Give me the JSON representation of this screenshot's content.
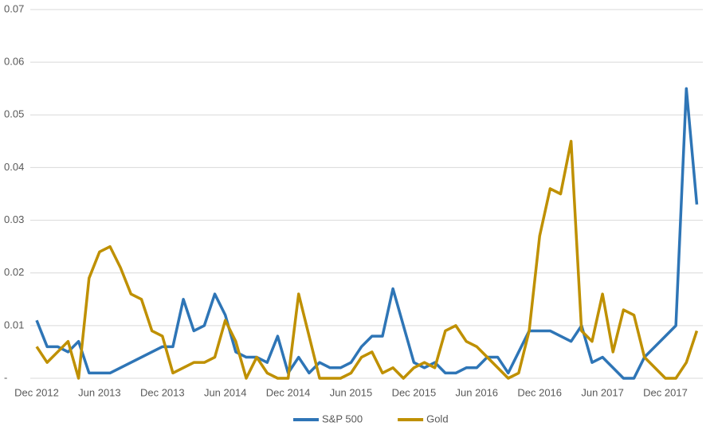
{
  "chart_data": {
    "type": "line",
    "categories": [
      "Dec 2012",
      null,
      null,
      null,
      null,
      null,
      "Jun 2013",
      null,
      null,
      null,
      null,
      null,
      "Dec 2013",
      null,
      null,
      null,
      null,
      null,
      "Jun 2014",
      null,
      null,
      null,
      null,
      null,
      "Dec 2014",
      null,
      null,
      null,
      null,
      null,
      "Jun 2015",
      null,
      null,
      null,
      null,
      null,
      "Dec 2015",
      null,
      null,
      null,
      null,
      null,
      "Jun 2016",
      null,
      null,
      null,
      null,
      null,
      "Dec 2016",
      null,
      null,
      null,
      null,
      null,
      "Jun 2017",
      null,
      null,
      null,
      null,
      null,
      "Dec 2017",
      null,
      null,
      null
    ],
    "series": [
      {
        "name": "S&P 500",
        "color": "#2e75b6",
        "values": [
          0.011,
          0.006,
          0.006,
          0.005,
          0.007,
          0.001,
          0.001,
          0.001,
          0.002,
          0.003,
          0.004,
          0.005,
          0.006,
          0.006,
          0.015,
          0.009,
          0.01,
          0.016,
          0.012,
          0.005,
          0.004,
          0.004,
          0.003,
          0.008,
          0.001,
          0.004,
          0.001,
          0.003,
          0.002,
          0.002,
          0.003,
          0.006,
          0.008,
          0.008,
          0.017,
          0.01,
          0.003,
          0.002,
          0.003,
          0.001,
          0.001,
          0.002,
          0.002,
          0.004,
          0.004,
          0.001,
          0.005,
          0.009,
          0.009,
          0.009,
          0.008,
          0.007,
          0.01,
          0.003,
          0.004,
          0.002,
          0.0,
          0.0,
          0.004,
          0.006,
          0.008,
          0.01,
          0.055,
          0.033
        ]
      },
      {
        "name": "Gold",
        "color": "#bf9000",
        "values": [
          0.006,
          0.003,
          0.005,
          0.007,
          0.0,
          0.019,
          0.024,
          0.025,
          0.021,
          0.016,
          0.015,
          0.009,
          0.008,
          0.001,
          0.002,
          0.003,
          0.003,
          0.004,
          0.011,
          0.007,
          0.0,
          0.004,
          0.001,
          0.0,
          0.0,
          0.016,
          0.008,
          0.0,
          0.0,
          0.0,
          0.001,
          0.004,
          0.005,
          0.001,
          0.002,
          0.0,
          0.002,
          0.003,
          0.002,
          0.009,
          0.01,
          0.007,
          0.006,
          0.004,
          0.002,
          0.0,
          0.001,
          0.009,
          0.027,
          0.036,
          0.035,
          0.045,
          0.009,
          0.007,
          0.016,
          0.005,
          0.013,
          0.012,
          0.004,
          0.002,
          0.0,
          0.0,
          0.003,
          0.009
        ]
      }
    ],
    "ylim": [
      0,
      0.07
    ],
    "yticks": [
      {
        "value": 0,
        "label": "-"
      },
      0.01,
      0.02,
      0.03,
      0.04,
      0.05,
      0.06,
      0.07
    ],
    "grid": true,
    "legend": "bottom"
  }
}
